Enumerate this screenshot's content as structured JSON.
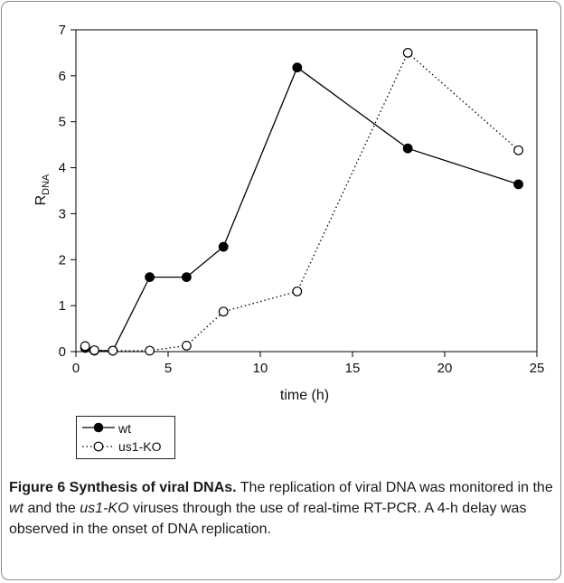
{
  "chart_data": {
    "type": "line",
    "xlabel": "time (h)",
    "ylabel": "R",
    "ylabel_subscript": "DNA",
    "xlim": [
      0,
      25
    ],
    "ylim": [
      0,
      7
    ],
    "xticks": [
      0,
      5,
      10,
      15,
      20,
      25
    ],
    "yticks": [
      0,
      1,
      2,
      3,
      4,
      5,
      6,
      7
    ],
    "grid": false,
    "legend_position": "bottom-left, below plot",
    "series": [
      {
        "name": "wt",
        "style": "solid",
        "marker": "filled-circle",
        "color": "#000000",
        "x": [
          0.5,
          1,
          2,
          4,
          6,
          8,
          12,
          18,
          24
        ],
        "y": [
          0.08,
          0.02,
          0.02,
          1.62,
          1.62,
          2.28,
          6.18,
          4.42,
          3.64
        ]
      },
      {
        "name": "us1-KO",
        "style": "dotted",
        "marker": "open-circle",
        "color": "#000000",
        "x": [
          0.5,
          1,
          2,
          4,
          6,
          8,
          12,
          18,
          24
        ],
        "y": [
          0.12,
          0.03,
          0.02,
          0.02,
          0.13,
          0.87,
          1.31,
          6.5,
          4.38
        ]
      }
    ]
  },
  "caption": {
    "label": "Figure 6 Synthesis of viral DNAs.",
    "text_parts": [
      {
        "text": " The replication of viral DNA was monitored in the ",
        "italic": false
      },
      {
        "text": "wt",
        "italic": true
      },
      {
        "text": " and the ",
        "italic": false
      },
      {
        "text": "us1-KO",
        "italic": true
      },
      {
        "text": " viruses through the use of real-time RT-PCR. A 4-h delay was observed in the onset of DNA replication.",
        "italic": false
      }
    ]
  }
}
